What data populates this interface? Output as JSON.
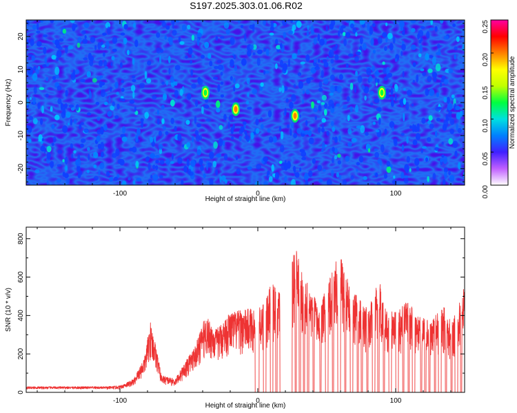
{
  "title": "S197.2025.303.01.06.R02",
  "chart_data": [
    {
      "type": "heatmap",
      "xlabel": "Height of straight line (km)",
      "ylabel": "Frequency (Hz)",
      "xlim": [
        -168,
        150
      ],
      "ylim": [
        -25,
        25
      ],
      "xticks": [
        -100,
        0,
        100
      ],
      "yticks": [
        -20,
        -10,
        0,
        10,
        20
      ],
      "colorbar": {
        "label": "Normalized spectral amplitude",
        "range": [
          0,
          0.25
        ],
        "ticks": [
          "0.00",
          "0.05",
          "0.10",
          "0.15",
          "0.20",
          "0.25"
        ],
        "colors": [
          "#ffffff",
          "#c060ff",
          "#4020ff",
          "#0080ff",
          "#00e0e0",
          "#00ff40",
          "#c0ff00",
          "#ffff00",
          "#ff8000",
          "#ff0000",
          "#ff00a0"
        ]
      },
      "hotspots": [
        {
          "x": -16,
          "y": -2,
          "value": 0.21
        },
        {
          "x": 27,
          "y": -4,
          "value": 0.2
        },
        {
          "x": -38,
          "y": 3,
          "value": 0.12
        },
        {
          "x": 90,
          "y": 3,
          "value": 0.13
        }
      ]
    },
    {
      "type": "line",
      "xlabel": "Height of straight line (km)",
      "ylabel": "SNR (10 * v/v)",
      "xlim": [
        -168,
        150
      ],
      "ylim": [
        0,
        860
      ],
      "xticks": [
        -100,
        0,
        100
      ],
      "yticks": [
        0,
        200,
        400,
        600,
        800
      ],
      "line_color": "#ee3333",
      "envelope": {
        "x": [
          -168,
          -110,
          -100,
          -90,
          -82,
          -78,
          -74,
          -70,
          -60,
          -45,
          -38,
          -30,
          -20,
          -10,
          0,
          5,
          10,
          15,
          20,
          25,
          28,
          32,
          40,
          45,
          55,
          60,
          65,
          70,
          80,
          88,
          93,
          100,
          110,
          116,
          125,
          135,
          140,
          145,
          150
        ],
        "y": [
          30,
          30,
          35,
          70,
          190,
          370,
          250,
          90,
          70,
          250,
          400,
          330,
          420,
          430,
          450,
          480,
          570,
          530,
          560,
          700,
          760,
          620,
          520,
          430,
          700,
          720,
          590,
          520,
          430,
          590,
          420,
          430,
          480,
          400,
          370,
          450,
          370,
          430,
          570
        ]
      },
      "gaps": [
        [
          -2,
          1
        ],
        [
          4,
          6
        ],
        [
          9,
          11
        ],
        [
          13,
          14
        ],
        [
          16,
          25
        ],
        [
          27,
          28
        ],
        [
          30,
          31
        ],
        [
          33,
          34
        ],
        [
          36,
          37
        ],
        [
          40,
          41
        ],
        [
          45,
          46
        ],
        [
          49,
          51
        ],
        [
          54,
          55
        ],
        [
          58,
          60
        ],
        [
          63,
          64
        ],
        [
          67,
          69
        ],
        [
          72,
          73
        ],
        [
          75,
          76
        ],
        [
          79,
          80
        ],
        [
          83,
          85
        ],
        [
          87,
          88
        ],
        [
          91,
          92
        ],
        [
          95,
          97
        ],
        [
          100,
          102
        ],
        [
          105,
          106
        ],
        [
          109,
          110
        ],
        [
          112,
          114
        ],
        [
          118,
          119
        ],
        [
          121,
          122
        ],
        [
          124,
          125
        ],
        [
          128,
          129
        ],
        [
          131,
          133
        ],
        [
          136,
          137
        ],
        [
          140,
          141
        ],
        [
          143,
          145
        ],
        [
          147,
          148
        ]
      ]
    }
  ]
}
